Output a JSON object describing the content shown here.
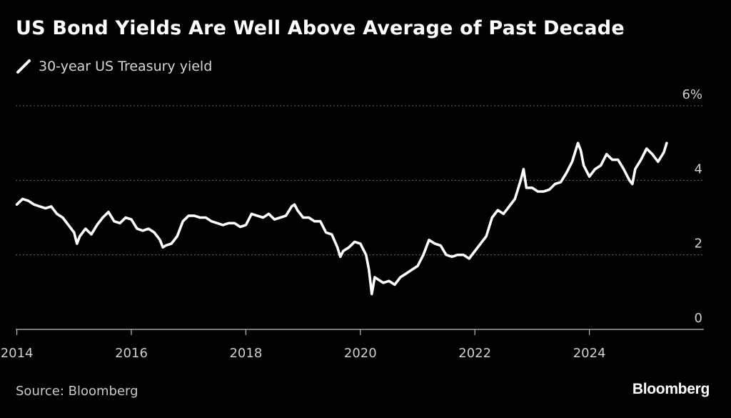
{
  "chart_data": {
    "type": "line",
    "title": "US Bond Yields Are Well Above Average of Past Decade",
    "legend": {
      "position": "top-left"
    },
    "series": [
      {
        "name": "30-year US Treasury yield",
        "color": "#ffffff",
        "points": [
          [
            2014.0,
            3.35
          ],
          [
            2014.1,
            3.5
          ],
          [
            2014.2,
            3.45
          ],
          [
            2014.3,
            3.35
          ],
          [
            2014.4,
            3.3
          ],
          [
            2014.5,
            3.25
          ],
          [
            2014.6,
            3.3
          ],
          [
            2014.7,
            3.1
          ],
          [
            2014.8,
            3.0
          ],
          [
            2014.9,
            2.8
          ],
          [
            2015.0,
            2.6
          ],
          [
            2015.05,
            2.3
          ],
          [
            2015.1,
            2.5
          ],
          [
            2015.2,
            2.7
          ],
          [
            2015.3,
            2.55
          ],
          [
            2015.4,
            2.8
          ],
          [
            2015.5,
            3.0
          ],
          [
            2015.6,
            3.15
          ],
          [
            2015.7,
            2.9
          ],
          [
            2015.8,
            2.85
          ],
          [
            2015.9,
            3.0
          ],
          [
            2016.0,
            2.95
          ],
          [
            2016.1,
            2.7
          ],
          [
            2016.2,
            2.65
          ],
          [
            2016.3,
            2.7
          ],
          [
            2016.4,
            2.6
          ],
          [
            2016.5,
            2.4
          ],
          [
            2016.55,
            2.2
          ],
          [
            2016.6,
            2.25
          ],
          [
            2016.7,
            2.3
          ],
          [
            2016.8,
            2.5
          ],
          [
            2016.9,
            2.9
          ],
          [
            2017.0,
            3.05
          ],
          [
            2017.1,
            3.05
          ],
          [
            2017.2,
            3.0
          ],
          [
            2017.3,
            3.0
          ],
          [
            2017.4,
            2.9
          ],
          [
            2017.5,
            2.85
          ],
          [
            2017.6,
            2.8
          ],
          [
            2017.7,
            2.85
          ],
          [
            2017.8,
            2.85
          ],
          [
            2017.9,
            2.75
          ],
          [
            2018.0,
            2.8
          ],
          [
            2018.1,
            3.1
          ],
          [
            2018.2,
            3.05
          ],
          [
            2018.3,
            3.0
          ],
          [
            2018.4,
            3.1
          ],
          [
            2018.5,
            2.95
          ],
          [
            2018.6,
            3.0
          ],
          [
            2018.7,
            3.05
          ],
          [
            2018.8,
            3.3
          ],
          [
            2018.85,
            3.35
          ],
          [
            2018.9,
            3.2
          ],
          [
            2019.0,
            3.0
          ],
          [
            2019.1,
            3.0
          ],
          [
            2019.2,
            2.9
          ],
          [
            2019.3,
            2.9
          ],
          [
            2019.4,
            2.6
          ],
          [
            2019.5,
            2.55
          ],
          [
            2019.6,
            2.2
          ],
          [
            2019.65,
            1.95
          ],
          [
            2019.7,
            2.1
          ],
          [
            2019.8,
            2.2
          ],
          [
            2019.9,
            2.35
          ],
          [
            2020.0,
            2.3
          ],
          [
            2020.1,
            2.0
          ],
          [
            2020.15,
            1.6
          ],
          [
            2020.2,
            0.95
          ],
          [
            2020.25,
            1.4
          ],
          [
            2020.3,
            1.35
          ],
          [
            2020.4,
            1.25
          ],
          [
            2020.5,
            1.3
          ],
          [
            2020.6,
            1.2
          ],
          [
            2020.7,
            1.4
          ],
          [
            2020.8,
            1.5
          ],
          [
            2020.9,
            1.6
          ],
          [
            2021.0,
            1.7
          ],
          [
            2021.1,
            2.0
          ],
          [
            2021.2,
            2.4
          ],
          [
            2021.3,
            2.3
          ],
          [
            2021.4,
            2.25
          ],
          [
            2021.5,
            2.0
          ],
          [
            2021.6,
            1.95
          ],
          [
            2021.7,
            2.0
          ],
          [
            2021.8,
            2.0
          ],
          [
            2021.9,
            1.9
          ],
          [
            2022.0,
            2.1
          ],
          [
            2022.1,
            2.3
          ],
          [
            2022.2,
            2.5
          ],
          [
            2022.3,
            3.0
          ],
          [
            2022.4,
            3.2
          ],
          [
            2022.5,
            3.1
          ],
          [
            2022.6,
            3.3
          ],
          [
            2022.7,
            3.5
          ],
          [
            2022.8,
            4.0
          ],
          [
            2022.85,
            4.3
          ],
          [
            2022.9,
            3.8
          ],
          [
            2023.0,
            3.8
          ],
          [
            2023.1,
            3.7
          ],
          [
            2023.2,
            3.7
          ],
          [
            2023.3,
            3.75
          ],
          [
            2023.4,
            3.9
          ],
          [
            2023.5,
            3.95
          ],
          [
            2023.6,
            4.2
          ],
          [
            2023.7,
            4.5
          ],
          [
            2023.8,
            5.0
          ],
          [
            2023.85,
            4.8
          ],
          [
            2023.9,
            4.4
          ],
          [
            2024.0,
            4.1
          ],
          [
            2024.1,
            4.3
          ],
          [
            2024.2,
            4.4
          ],
          [
            2024.3,
            4.7
          ],
          [
            2024.4,
            4.55
          ],
          [
            2024.5,
            4.55
          ],
          [
            2024.6,
            4.3
          ],
          [
            2024.7,
            4.0
          ],
          [
            2024.75,
            3.9
          ],
          [
            2024.8,
            4.3
          ],
          [
            2024.9,
            4.55
          ],
          [
            2025.0,
            4.85
          ],
          [
            2025.1,
            4.7
          ],
          [
            2025.2,
            4.5
          ],
          [
            2025.3,
            4.75
          ],
          [
            2025.35,
            5.0
          ]
        ]
      }
    ],
    "x_ticks": [
      {
        "value": 2014,
        "label": "2014"
      },
      {
        "value": 2016,
        "label": "2016"
      },
      {
        "value": 2018,
        "label": "2018"
      },
      {
        "value": 2020,
        "label": "2020"
      },
      {
        "value": 2022,
        "label": "2022"
      },
      {
        "value": 2024,
        "label": "2024"
      }
    ],
    "y_ticks": [
      {
        "value": 6,
        "label": "6%"
      },
      {
        "value": 4,
        "label": "4"
      },
      {
        "value": 2,
        "label": "2"
      },
      {
        "value": 0,
        "label": "0"
      }
    ],
    "xlim": [
      2013.98,
      2026.0
    ],
    "ylim": [
      0,
      6
    ],
    "grid": "horizontal-dotted",
    "source": "Source: Bloomberg"
  },
  "brand": "Bloomberg"
}
